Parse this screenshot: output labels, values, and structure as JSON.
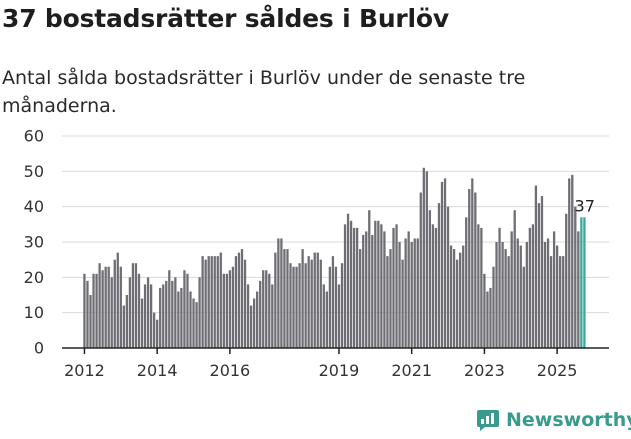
{
  "title": "37 bostadsrätter såldes i Burlöv",
  "subtitle": "Antal sålda bostadsrätter i Burlöv under de senaste tre månaderna.",
  "brand": "Newsworthy",
  "colors": {
    "bar": "#6f6e74",
    "highlight": "#3aa6a0",
    "grid": "#d9d9d9",
    "axis": "#222222",
    "brand": "#3a9a8e"
  },
  "chart_data": {
    "type": "bar",
    "title": "37 bostadsrätter såldes i Burlöv",
    "xlabel": "",
    "ylabel": "",
    "ylim": [
      0,
      60
    ],
    "yticks": [
      "0",
      "10",
      "20",
      "30",
      "40",
      "50",
      "60"
    ],
    "xticks": [
      "2012",
      "2014",
      "2016",
      "2019",
      "2021",
      "2023",
      "2025"
    ],
    "start": "2012-01",
    "unit": "month",
    "annotation": "37",
    "values": [
      21,
      19,
      15,
      21,
      21,
      24,
      22,
      23,
      23,
      20,
      25,
      27,
      23,
      12,
      15,
      20,
      24,
      24,
      21,
      14,
      18,
      20,
      18,
      10,
      8,
      17,
      18,
      19,
      22,
      19,
      20,
      16,
      17,
      22,
      21,
      16,
      14,
      13,
      20,
      26,
      25,
      26,
      26,
      26,
      26,
      27,
      21,
      21,
      22,
      23,
      26,
      27,
      28,
      25,
      18,
      12,
      14,
      16,
      19,
      22,
      22,
      21,
      18,
      27,
      31,
      31,
      28,
      28,
      24,
      23,
      23,
      24,
      28,
      24,
      26,
      25,
      27,
      27,
      25,
      18,
      16,
      23,
      26,
      23,
      18,
      24,
      35,
      38,
      36,
      34,
      34,
      28,
      32,
      33,
      39,
      32,
      36,
      36,
      35,
      33,
      26,
      28,
      34,
      35,
      30,
      25,
      31,
      33,
      30,
      31,
      31,
      44,
      51,
      50,
      39,
      35,
      34,
      41,
      47,
      48,
      40,
      29,
      28,
      25,
      27,
      29,
      37,
      45,
      48,
      44,
      35,
      34,
      21,
      16,
      17,
      23,
      30,
      34,
      30,
      28,
      26,
      33,
      39,
      31,
      29,
      23,
      30,
      34,
      35,
      46,
      41,
      43,
      30,
      31,
      26,
      33,
      29,
      26,
      26,
      38,
      48,
      49,
      40,
      33,
      37,
      37
    ]
  }
}
